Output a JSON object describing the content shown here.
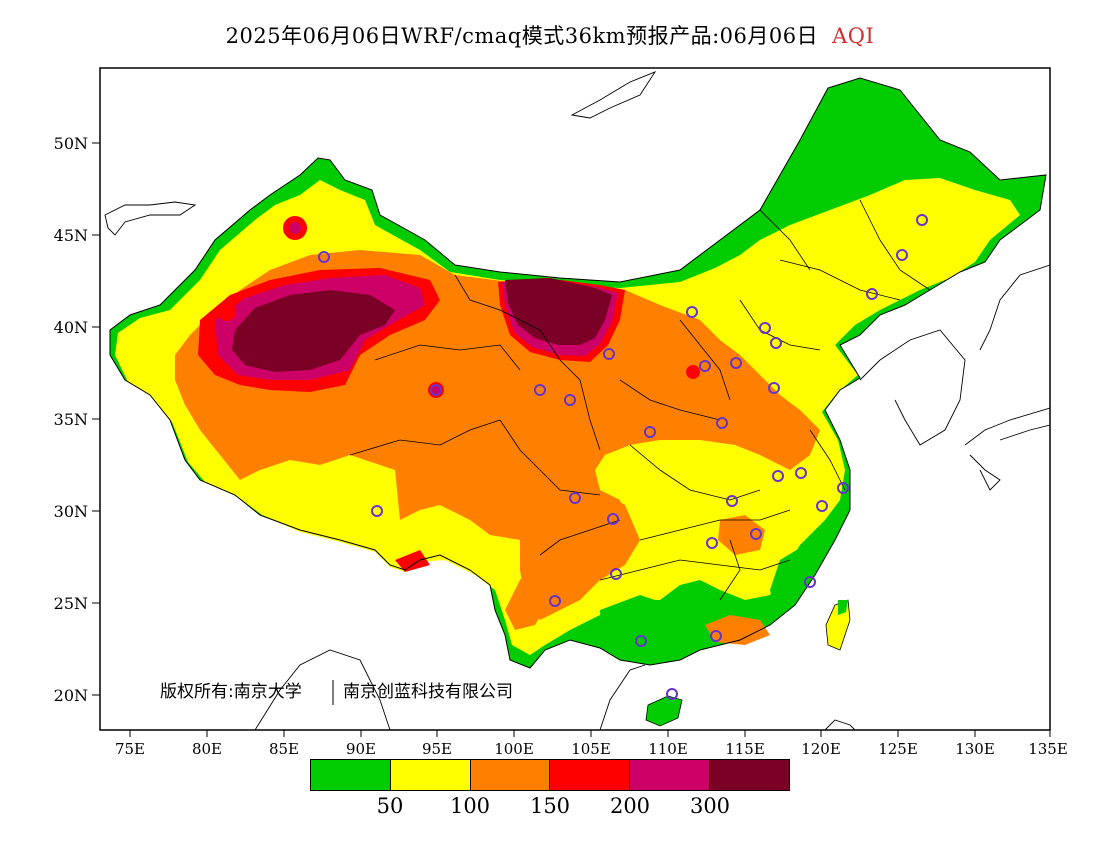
{
  "header": {
    "title": "2025年06月06日WRF/cmaq模式36km预报产品:06月06日",
    "variable": "AQI"
  },
  "map": {
    "lat_ticks": [
      "50N",
      "45N",
      "40N",
      "35N",
      "30N",
      "25N",
      "20N"
    ],
    "lon_ticks": [
      "75E",
      "80E",
      "85E",
      "90E",
      "95E",
      "100E",
      "105E",
      "110E",
      "115E",
      "120E",
      "125E",
      "130E",
      "135E"
    ],
    "copyright": "版权所有:南京大学",
    "copyright2": "南京创蓝科技有限公司"
  },
  "legend": {
    "colors": [
      "#00cc00",
      "#ffff00",
      "#ff8000",
      "#ff0000",
      "#cc0066",
      "#7a0026"
    ],
    "labels": [
      "50",
      "100",
      "150",
      "200",
      "300"
    ]
  }
}
